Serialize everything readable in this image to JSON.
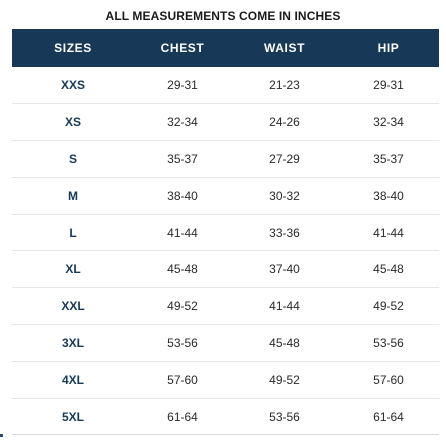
{
  "caption": "ALL MEASUREMENTS COME IN INCHES",
  "columns": [
    "SIZES",
    "CHEST",
    "WAIST",
    "HIP"
  ],
  "rows": [
    {
      "size": "XXS",
      "chest": "29-31",
      "waist": "21-23",
      "hip": "29-31"
    },
    {
      "size": "XS",
      "chest": "32-34",
      "waist": "24-26",
      "hip": "32-34"
    },
    {
      "size": "S",
      "chest": "35-37",
      "waist": "27-29",
      "hip": "35-37"
    },
    {
      "size": "M",
      "chest": "38-40",
      "waist": "30-32",
      "hip": "38-40"
    },
    {
      "size": "L",
      "chest": "41-44",
      "waist": "33-36",
      "hip": "41-44"
    },
    {
      "size": "XL",
      "chest": "45-48",
      "waist": "37-40",
      "hip": "45-48"
    },
    {
      "size": "XXL",
      "chest": "49-52",
      "waist": "41-44",
      "hip": "49-52"
    },
    {
      "size": "3XL",
      "chest": "53-56",
      "waist": "45-48",
      "hip": "53-56"
    },
    {
      "size": "4XL",
      "chest": "57-60",
      "waist": "49-52",
      "hip": "57-60"
    },
    {
      "size": "5XL",
      "chest": "61-64",
      "waist": "53-56",
      "hip": "61-64"
    }
  ],
  "colors": {
    "header_background": "#173957",
    "header_text": "#ffffff",
    "size_text": "#173957",
    "body_text": "#2a2a2a",
    "row_divider": "#e7e7e7"
  }
}
